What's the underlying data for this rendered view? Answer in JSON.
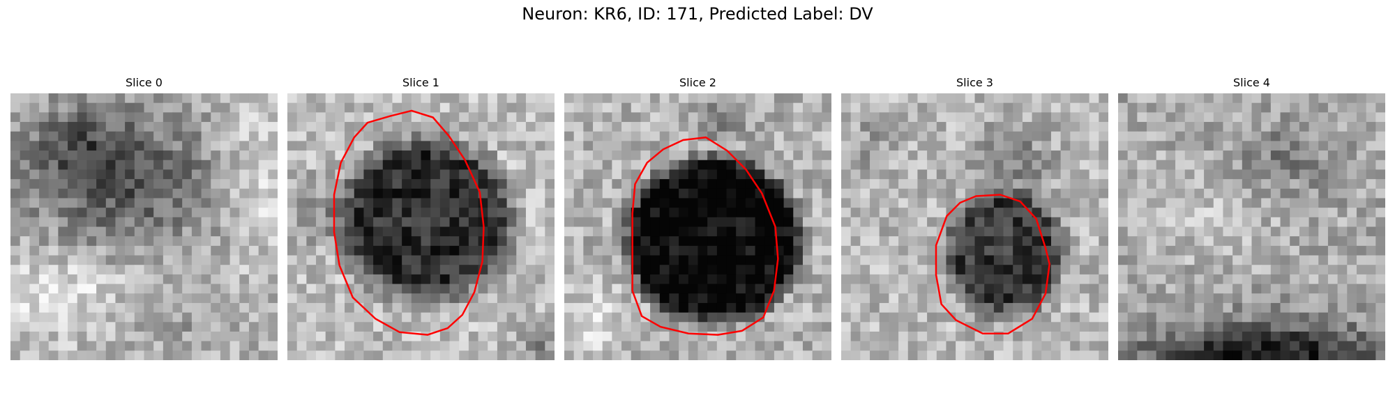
{
  "figure": {
    "title": "Neuron: KR6, ID: 171, Predicted Label: DV"
  },
  "panels": [
    {
      "title": "Slice 0",
      "has_contour": false,
      "contour_color": "#ff0000"
    },
    {
      "title": "Slice 1",
      "has_contour": true,
      "contour_color": "#ff0000"
    },
    {
      "title": "Slice 2",
      "has_contour": true,
      "contour_color": "#ff0000"
    },
    {
      "title": "Slice 3",
      "has_contour": true,
      "contour_color": "#ff0000"
    },
    {
      "title": "Slice 4",
      "has_contour": false,
      "contour_color": "#ff0000"
    }
  ],
  "colormap": "gray",
  "grid_size": 28
}
